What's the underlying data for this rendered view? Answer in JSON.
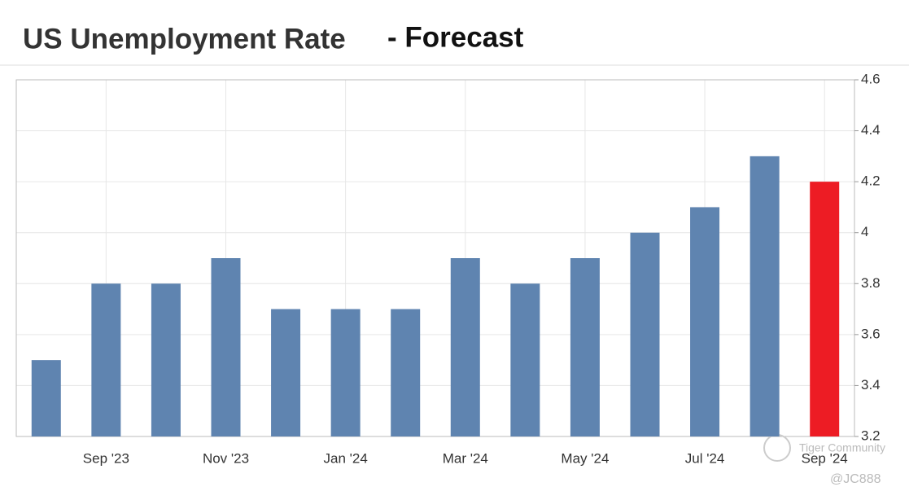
{
  "chart_data": {
    "type": "bar",
    "title": "US Unemployment Rate",
    "subtitle": "- Forecast",
    "categories": [
      null,
      "Sep '23",
      null,
      "Nov '23",
      null,
      "Jan '24",
      null,
      "Mar '24",
      null,
      "May '24",
      null,
      "Jul '24",
      null,
      "Sep '24"
    ],
    "values": [
      3.5,
      3.8,
      3.8,
      3.9,
      3.7,
      3.7,
      3.7,
      3.9,
      3.8,
      3.9,
      4.0,
      4.1,
      4.3,
      4.2
    ],
    "colors": [
      "#5f84b0",
      "#5f84b0",
      "#5f84b0",
      "#5f84b0",
      "#5f84b0",
      "#5f84b0",
      "#5f84b0",
      "#5f84b0",
      "#5f84b0",
      "#5f84b0",
      "#5f84b0",
      "#5f84b0",
      "#5f84b0",
      "#ed1c24"
    ],
    "ylim": [
      3.2,
      4.6
    ],
    "yticks": [
      3.2,
      3.4,
      3.6,
      3.8,
      4,
      4.2,
      4.4,
      4.6
    ],
    "grid": true,
    "watermark": "Tiger Community",
    "author": "@JC888"
  }
}
